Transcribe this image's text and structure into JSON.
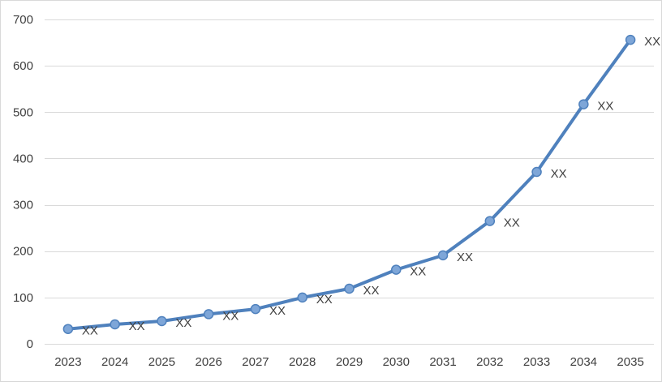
{
  "chart_data": {
    "type": "line",
    "categories": [
      "2023",
      "2024",
      "2025",
      "2026",
      "2027",
      "2028",
      "2029",
      "2030",
      "2031",
      "2032",
      "2033",
      "2034",
      "2035"
    ],
    "series": [
      {
        "values": [
          32,
          42,
          49,
          64,
          75,
          100,
          119,
          160,
          191,
          265,
          371,
          517,
          656
        ],
        "data_labels": [
          "XX",
          "XX",
          "XX",
          "XX",
          "XX",
          "XX",
          "XX",
          "XX",
          "XX",
          "XX",
          "XX",
          "XX",
          "XX"
        ]
      }
    ],
    "ylim": [
      0,
      700
    ],
    "yticks": [
      "0",
      "100",
      "200",
      "300",
      "400",
      "500",
      "600",
      "700"
    ],
    "grid": true,
    "legend": "none",
    "colors": {
      "line": "#4f81bd",
      "marker_fill": "#7ea6d8",
      "marker_edge": "#4f81bd",
      "grid": "#d9d9d9",
      "text": "#404040"
    }
  }
}
